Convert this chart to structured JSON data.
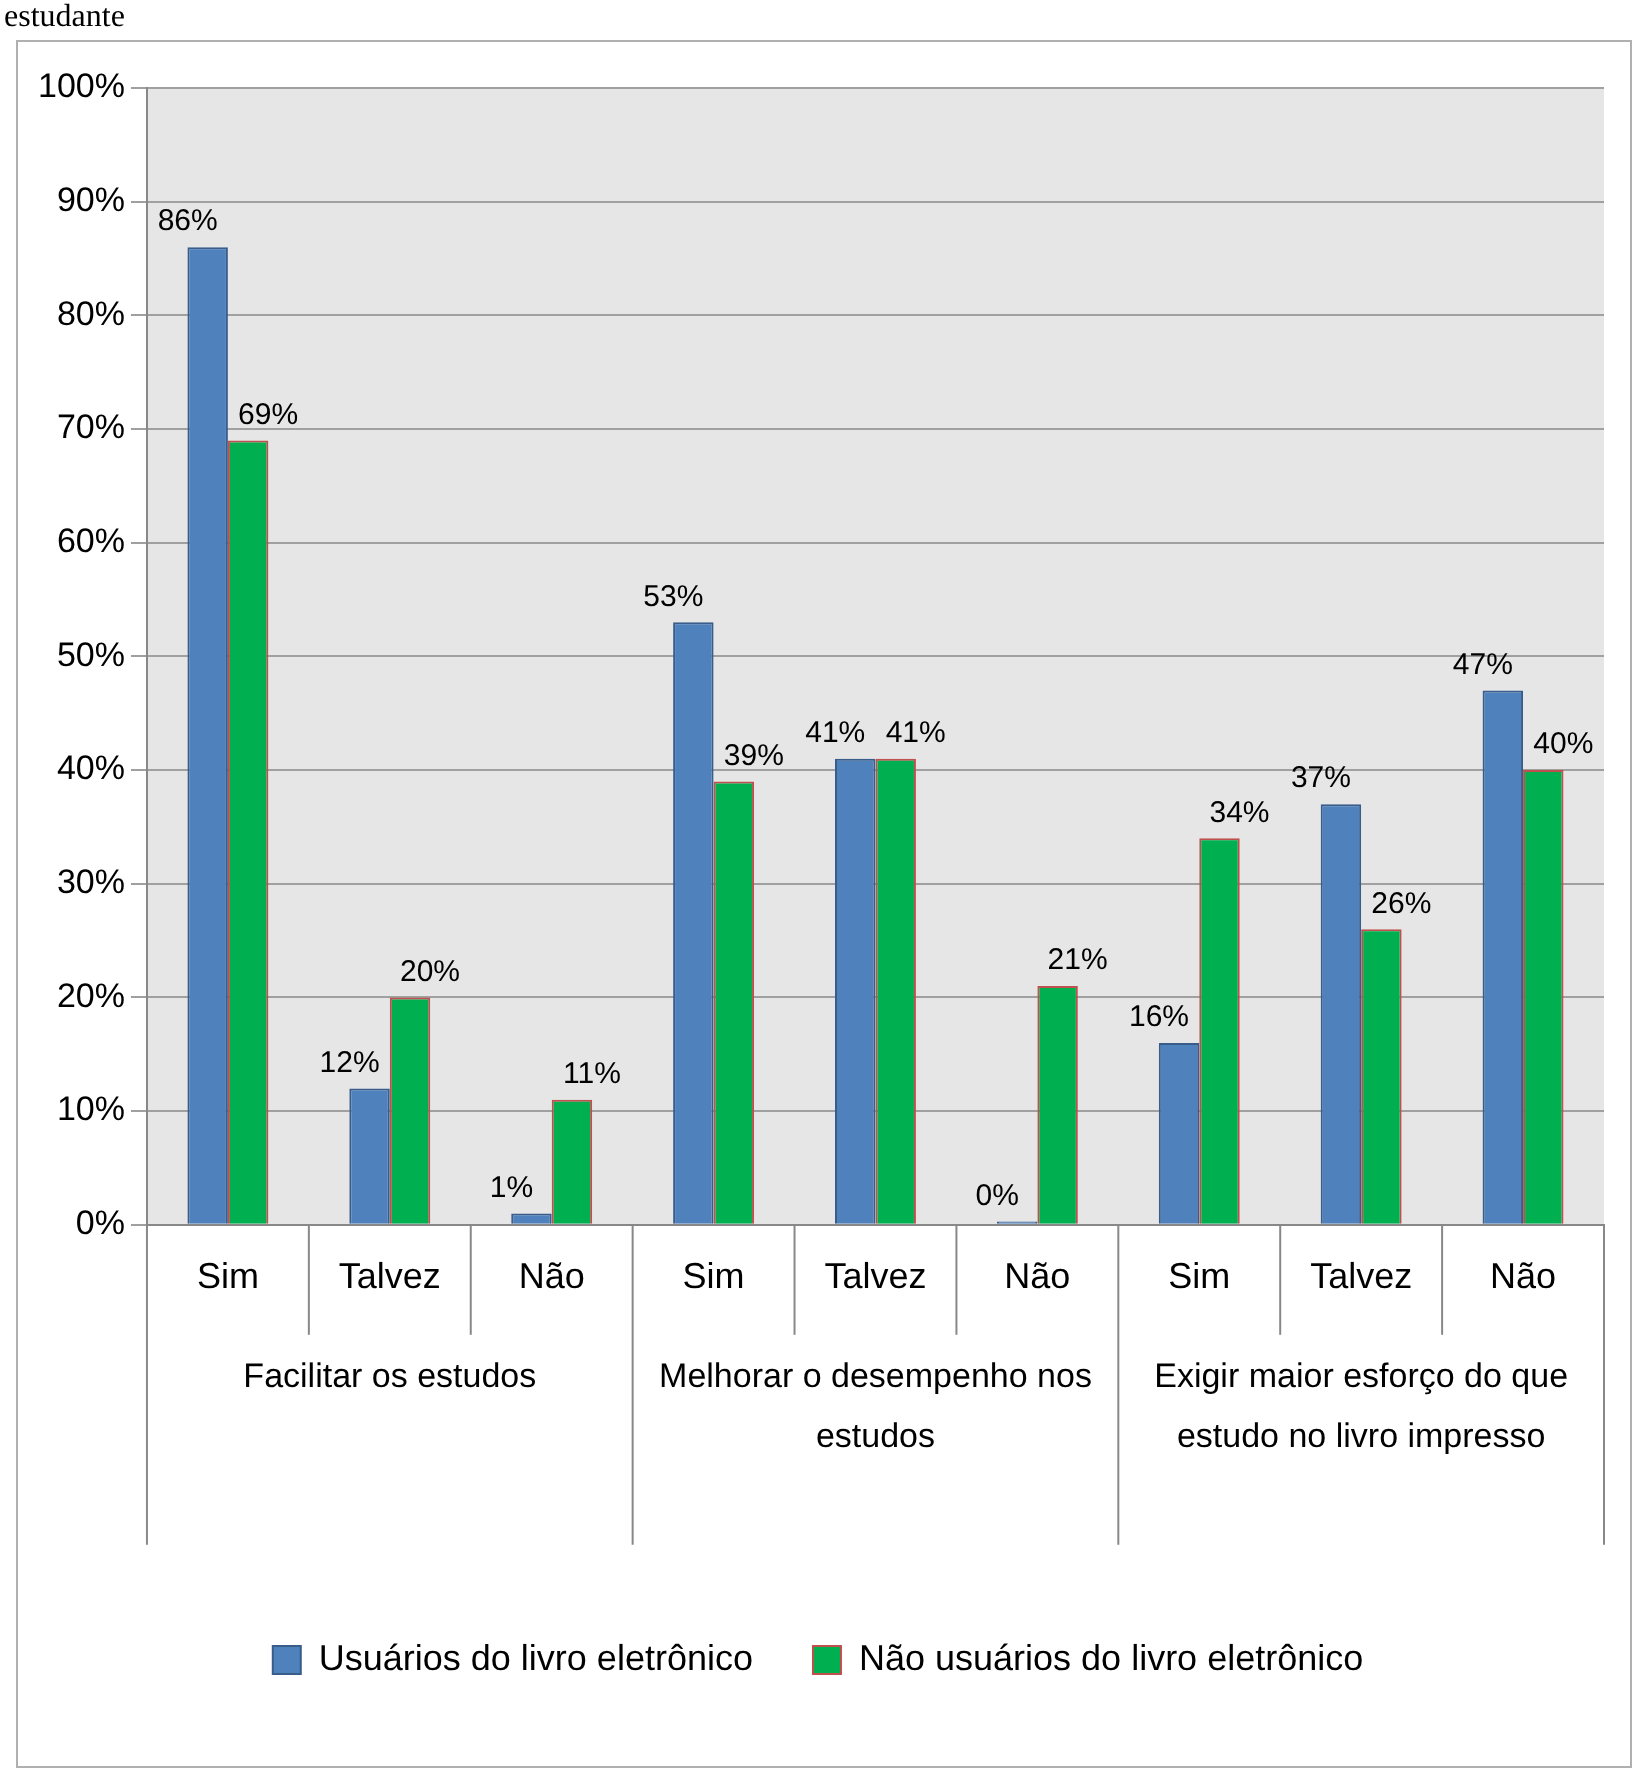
{
  "chart_data": {
    "type": "bar",
    "title": "estudante",
    "categories": [
      "Sim",
      "Talvez",
      "Não",
      "Sim",
      "Talvez",
      "Não",
      "Sim",
      "Talvez",
      "Não"
    ],
    "annotations": [
      "Facilitar os estudos",
      "Melhorar o desempenho nos estudos",
      "Exigir maior esforço do que estudo no livro impresso"
    ],
    "series": [
      {
        "name": "Usuários do livro eletrônico",
        "color": "#4f81bd",
        "values": [
          86,
          12,
          1,
          53,
          41,
          0.3,
          16,
          37,
          47
        ],
        "value_labels": [
          "86%",
          "12%",
          "1%",
          "53%",
          "41%",
          "0%",
          "16%",
          "37%",
          "47%"
        ]
      },
      {
        "name": "Não usuários do livro eletrônico",
        "color": "#00b050",
        "values": [
          69,
          20,
          11,
          39,
          41,
          21,
          34,
          26,
          40
        ],
        "value_labels": [
          "69%",
          "20%",
          "11%",
          "39%",
          "41%",
          "21%",
          "34%",
          "26%",
          "40%"
        ]
      }
    ],
    "ylim": [
      0,
      100
    ],
    "yticks": [
      {
        "value": 0,
        "label": "0%"
      },
      {
        "value": 10,
        "label": "10%"
      },
      {
        "value": 20,
        "label": "20%"
      },
      {
        "value": 30,
        "label": "30%"
      },
      {
        "value": 40,
        "label": "40%"
      },
      {
        "value": 50,
        "label": "50%"
      },
      {
        "value": 60,
        "label": "60%"
      },
      {
        "value": 70,
        "label": "70%"
      },
      {
        "value": 80,
        "label": "80%"
      },
      {
        "value": 90,
        "label": "90%"
      },
      {
        "value": 100,
        "label": "100%"
      }
    ],
    "grid": "y",
    "legend": "bottom"
  }
}
